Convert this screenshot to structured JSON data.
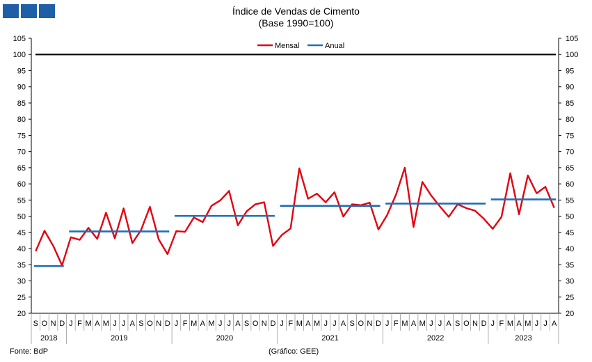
{
  "header": {
    "logo_icon": "bdp-logo-blocks",
    "title": "Índice de Vendas de Cimento",
    "subtitle": "(Base 1990=100)"
  },
  "footer": {
    "source": "Fonte: BdP",
    "credit": "(Gráfico: GEE)"
  },
  "chart_data": {
    "type": "line",
    "title": "Índice de Vendas de Cimento",
    "subtitle": "(Base 1990=100)",
    "ylim": [
      20,
      105
    ],
    "yticks": [
      20,
      25,
      30,
      35,
      40,
      45,
      50,
      55,
      60,
      65,
      70,
      75,
      80,
      85,
      90,
      95,
      100,
      105
    ],
    "y_axis_right": true,
    "grid": false,
    "legend": {
      "position": "top-center",
      "entries": [
        "Mensal",
        "Anual"
      ]
    },
    "reference_line": {
      "value": 100,
      "color": "#000000"
    },
    "month_labels": [
      "S",
      "O",
      "N",
      "D",
      "J",
      "F",
      "M",
      "A",
      "M",
      "J",
      "J",
      "A",
      "S",
      "O",
      "N",
      "D",
      "J",
      "F",
      "M",
      "A",
      "M",
      "J",
      "J",
      "A",
      "S",
      "O",
      "N",
      "D",
      "J",
      "F",
      "M",
      "A",
      "M",
      "J",
      "J",
      "A",
      "S",
      "O",
      "N",
      "D",
      "J",
      "F",
      "M",
      "A",
      "M",
      "J",
      "J",
      "A",
      "S",
      "O",
      "N",
      "D",
      "J",
      "F",
      "M",
      "A",
      "M",
      "J",
      "J",
      "A"
    ],
    "years": [
      {
        "label": "2018",
        "start": 0,
        "count": 4
      },
      {
        "label": "2019",
        "start": 4,
        "count": 12
      },
      {
        "label": "2020",
        "start": 16,
        "count": 12
      },
      {
        "label": "2021",
        "start": 28,
        "count": 12
      },
      {
        "label": "2022",
        "start": 40,
        "count": 12
      },
      {
        "label": "2023",
        "start": 52,
        "count": 8
      }
    ],
    "series": [
      {
        "name": "Mensal",
        "color": "#e3000f",
        "values": [
          39.2,
          45.5,
          40.8,
          34.8,
          43.5,
          42.7,
          46.4,
          43.0,
          51.1,
          43.2,
          52.4,
          41.7,
          45.8,
          52.9,
          42.8,
          38.3,
          45.4,
          45.2,
          49.6,
          48.2,
          53.2,
          54.9,
          57.8,
          47.2,
          51.5,
          53.7,
          54.3,
          40.8,
          44.2,
          46.2,
          64.8,
          55.4,
          57.0,
          54.3,
          57.4,
          49.9,
          53.7,
          53.4,
          54.2,
          45.9,
          50.4,
          56.7,
          65.0,
          46.7,
          60.6,
          56.4,
          53.0,
          49.8,
          53.7,
          52.5,
          51.7,
          49.2,
          46.1,
          49.8,
          63.3,
          50.6,
          62.6,
          57.1,
          59.1,
          52.6
        ]
      },
      {
        "name": "Anual",
        "color": "#1f6fb2",
        "segments": [
          {
            "start": 0,
            "end": 3,
            "value": 34.6
          },
          {
            "start": 4,
            "end": 15,
            "value": 45.3
          },
          {
            "start": 16,
            "end": 27,
            "value": 50.1
          },
          {
            "start": 28,
            "end": 39,
            "value": 53.2
          },
          {
            "start": 40,
            "end": 51,
            "value": 53.9
          },
          {
            "start": 52,
            "end": 59,
            "value": 55.2
          }
        ]
      }
    ]
  }
}
